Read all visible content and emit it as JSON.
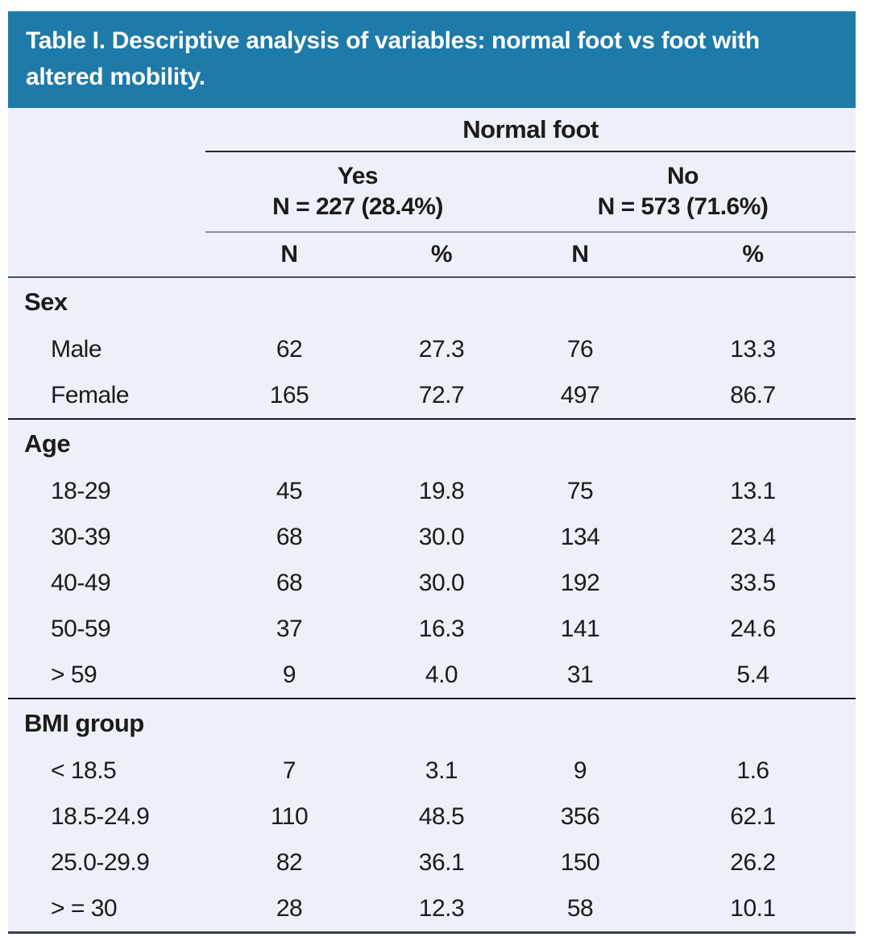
{
  "title": "Table I. Descriptive analysis of variables: normal foot vs foot with altered mobility.",
  "colors": {
    "title_bar_bg": "#1e7aa8",
    "title_text": "#ffffff",
    "table_bg": "#edf0f8",
    "body_text": "#1b1b1b",
    "section_rule": "#1d1d1d",
    "group_rule": "#8a8f98",
    "bottom_rule": "#3a4049"
  },
  "table": {
    "group_header": "Normal foot",
    "groups": [
      {
        "label": "Yes",
        "sublabel": "N = 227 (28.4%)"
      },
      {
        "label": "No",
        "sublabel": "N = 573 (71.6%)"
      }
    ],
    "col_headers": [
      "N",
      "%",
      "N",
      "%"
    ],
    "sections": [
      {
        "name": "Sex",
        "rows": [
          {
            "label": "Male",
            "values": [
              "62",
              "27.3",
              "76",
              "13.3"
            ]
          },
          {
            "label": "Female",
            "values": [
              "165",
              "72.7",
              "497",
              "86.7"
            ]
          }
        ]
      },
      {
        "name": "Age",
        "rows": [
          {
            "label": "18-29",
            "values": [
              "45",
              "19.8",
              "75",
              "13.1"
            ]
          },
          {
            "label": "30-39",
            "values": [
              "68",
              "30.0",
              "134",
              "23.4"
            ]
          },
          {
            "label": "40-49",
            "values": [
              "68",
              "30.0",
              "192",
              "33.5"
            ]
          },
          {
            "label": "50-59",
            "values": [
              "37",
              "16.3",
              "141",
              "24.6"
            ]
          },
          {
            "label": "> 59",
            "values": [
              "9",
              "4.0",
              "31",
              "5.4"
            ]
          }
        ]
      },
      {
        "name": "BMI group",
        "rows": [
          {
            "label": "< 18.5",
            "values": [
              "7",
              "3.1",
              "9",
              "1.6"
            ]
          },
          {
            "label": "18.5-24.9",
            "values": [
              "110",
              "48.5",
              "356",
              "62.1"
            ]
          },
          {
            "label": "25.0-29.9",
            "values": [
              "82",
              "36.1",
              "150",
              "26.2"
            ]
          },
          {
            "label": "> = 30",
            "values": [
              "28",
              "12.3",
              "58",
              "10.1"
            ]
          }
        ]
      }
    ]
  }
}
